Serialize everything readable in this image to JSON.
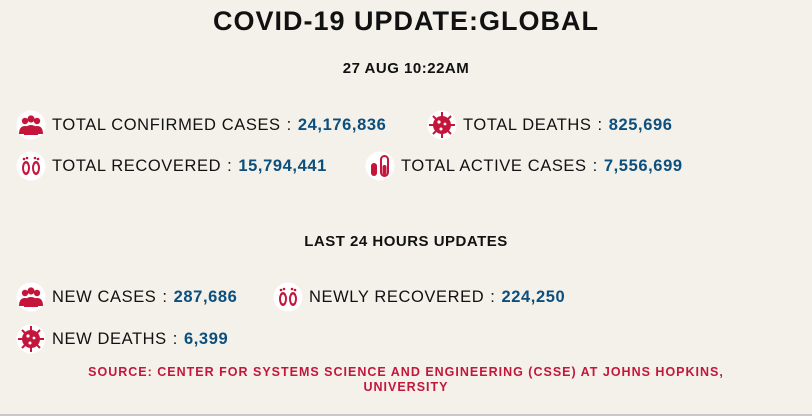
{
  "header": {
    "title": "COVID-19 UPDATE:GLOBAL",
    "timestamp": "27 AUG 10:22AM"
  },
  "totals": [
    {
      "icon": "group-people-icon",
      "label": "TOTAL CONFIRMED CASES",
      "sep": ":",
      "value": "24,176,836"
    },
    {
      "icon": "virus-icon",
      "label": "TOTAL DEATHS",
      "sep": ":",
      "value": "825,696"
    },
    {
      "icon": "footprints-icon",
      "label": "TOTAL RECOVERED",
      "sep": ":",
      "value": "15,794,441"
    },
    {
      "icon": "test-tube-icon",
      "label": "TOTAL ACTIVE CASES",
      "sep": ":",
      "value": "7,556,699"
    }
  ],
  "last24": {
    "title": "LAST 24 HOURS UPDATES",
    "items": [
      {
        "icon": "group-people-icon",
        "label": "NEW CASES",
        "sep": ":",
        "value": "287,686"
      },
      {
        "icon": "footprints-icon",
        "label": "NEWLY RECOVERED",
        "sep": ":",
        "value": "224,250"
      },
      {
        "icon": "virus-icon",
        "label": "NEW DEATHS",
        "sep": ":",
        "value": "6,399"
      }
    ]
  },
  "source": {
    "line1": "SOURCE: CENTER FOR SYSTEMS SCIENCE AND ENGINEERING (CSSE) AT JOHNS HOPKINS,",
    "line2": "UNIVERSITY"
  },
  "colors": {
    "background": "#f3f1ea",
    "value": "#0d4f7c",
    "icon": "#c4163b",
    "source": "#c4163b"
  }
}
